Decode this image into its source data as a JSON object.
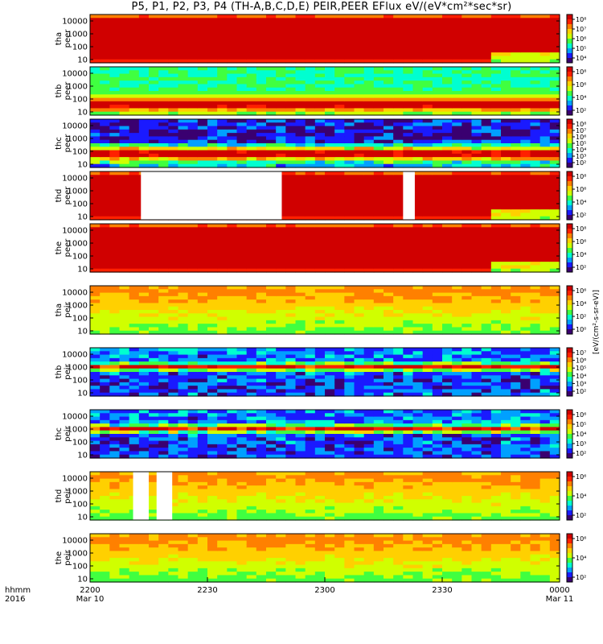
{
  "title": "P5, P1, P2, P3, P4 (TH-A,B,C,D,E) PEIR,PEER EFlux eV/(eV*cm²*sec*sr)",
  "colorbar_side_label": "[eV/(cm²-s-sr-eV)]",
  "colorscale": [
    "#3a0070",
    "#1a1aff",
    "#00a0ff",
    "#00ffd0",
    "#40ff40",
    "#d0ff00",
    "#ffd000",
    "#ff8000",
    "#ff2000",
    "#d00000"
  ],
  "time_axis": {
    "row_label": "hhmm",
    "year_label": "2016",
    "ticks": [
      {
        "label": "2200",
        "sub": "Mar 10"
      },
      {
        "label": "2230",
        "sub": ""
      },
      {
        "label": "2300",
        "sub": ""
      },
      {
        "label": "2330",
        "sub": ""
      },
      {
        "label": "0000",
        "sub": "Mar 11"
      }
    ]
  },
  "chart_data": {
    "type": "heatmap",
    "x_range": [
      "2016-03-10 22:00",
      "2016-03-11 00:00"
    ],
    "y_scale": "log",
    "y_ticks": [
      "10",
      "100",
      "1000",
      "10000"
    ],
    "panels": [
      {
        "probe": "tha",
        "species": "peer",
        "ylabel": [
          "tha",
          "peer"
        ],
        "cbar_ticks": [
          "10⁸",
          "10⁷",
          "10⁶",
          "10⁵",
          "10⁴"
        ],
        "profile": "hot_electron",
        "gaps": []
      },
      {
        "probe": "thb",
        "species": "peer",
        "ylabel": [
          "thb",
          "peer"
        ],
        "cbar_ticks": [
          "10⁸",
          "10⁶",
          "10⁴",
          "10²"
        ],
        "profile": "band_electron",
        "gaps": []
      },
      {
        "probe": "thc",
        "species": "peer",
        "ylabel": [
          "thc",
          "peer"
        ],
        "cbar_ticks": [
          "10⁸",
          "10⁷",
          "10⁶",
          "10⁵",
          "10⁴",
          "10³",
          "10²"
        ],
        "profile": "band_electron_noisy",
        "gaps": []
      },
      {
        "probe": "thd",
        "species": "peer",
        "ylabel": [
          "thd",
          "peer"
        ],
        "cbar_ticks": [
          "10⁸",
          "10⁶",
          "10⁴",
          "10²"
        ],
        "profile": "hot_electron",
        "gaps": [
          [
            "22:13",
            "22:49"
          ],
          [
            "23:20",
            "23:23"
          ]
        ]
      },
      {
        "probe": "the",
        "species": "peer",
        "ylabel": [
          "the",
          "peer"
        ],
        "cbar_ticks": [
          "10⁸",
          "10⁶",
          "10⁴",
          "10²"
        ],
        "profile": "hot_electron",
        "gaps": []
      },
      {
        "probe": "tha",
        "species": "peir",
        "ylabel": [
          "tha",
          "peir"
        ],
        "cbar_ticks": [
          "10⁶",
          "10⁴",
          "10²",
          "10⁰"
        ],
        "profile": "ion",
        "gaps": []
      },
      {
        "probe": "thb",
        "species": "peir",
        "ylabel": [
          "thb",
          "peir"
        ],
        "cbar_ticks": [
          "10⁷",
          "10⁶",
          "10⁵",
          "10⁴",
          "10³",
          "10²"
        ],
        "profile": "band_ion",
        "gaps": []
      },
      {
        "probe": "thc",
        "species": "peir",
        "ylabel": [
          "thc",
          "peir"
        ],
        "cbar_ticks": [
          "10⁶",
          "10⁵",
          "10⁴",
          "10³",
          "10²"
        ],
        "profile": "band_ion",
        "gaps": []
      },
      {
        "probe": "thd",
        "species": "peir",
        "ylabel": [
          "thd",
          "peir"
        ],
        "cbar_ticks": [
          "10⁶",
          "10⁴",
          "10²"
        ],
        "profile": "ion",
        "gaps": [
          [
            "22:11",
            "22:15"
          ],
          [
            "22:17",
            "22:21"
          ]
        ]
      },
      {
        "probe": "the",
        "species": "peir",
        "ylabel": [
          "the",
          "peir"
        ],
        "cbar_ticks": [
          "10⁶",
          "10⁴",
          "10²"
        ],
        "profile": "ion",
        "gaps": []
      }
    ]
  }
}
